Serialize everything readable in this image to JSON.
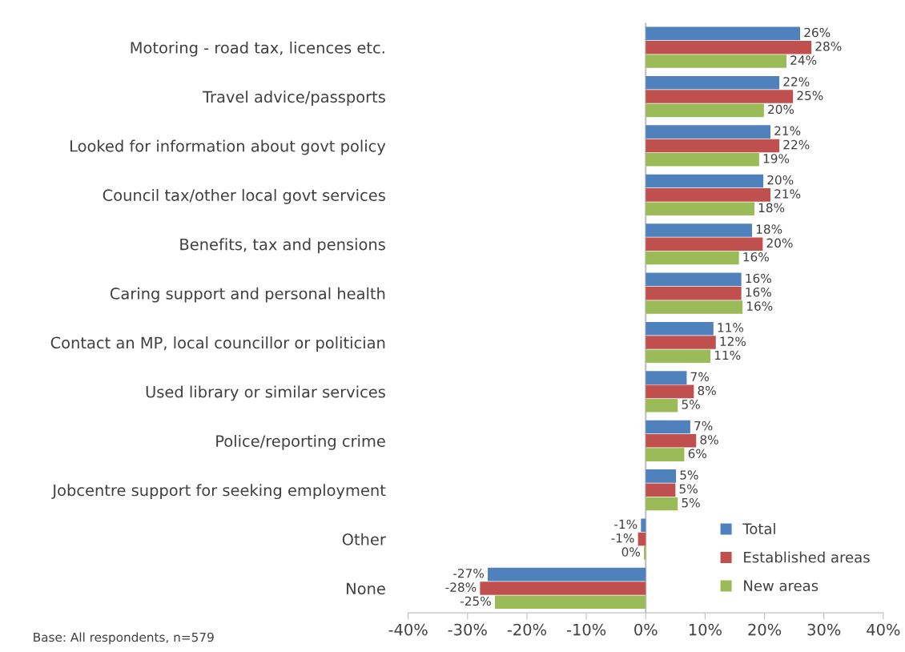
{
  "chart_data": {
    "type": "bar",
    "orientation": "horizontal",
    "categories": [
      "Motoring - road tax, licences etc.",
      "Travel advice/passports",
      "Looked for information about govt policy",
      "Council tax/other local govt services",
      "Benefits, tax and pensions",
      "Caring support and personal health",
      "Contact an MP, local councillor or politician",
      "Used library or similar services",
      "Police/reporting crime",
      "Jobcentre support for seeking employment",
      "Other",
      "None"
    ],
    "series": [
      {
        "name": "Total",
        "color": "#4f81bd",
        "values": [
          26,
          22.5,
          21,
          19.8,
          17.9,
          16.1,
          11.4,
          6.9,
          7.5,
          5.1,
          -0.8,
          -26.6
        ],
        "value_labels": [
          "26%",
          "22%",
          "21%",
          "20%",
          "18%",
          "16%",
          "11%",
          "7%",
          "7%",
          "5%",
          "-1%",
          "-27%"
        ]
      },
      {
        "name": "Established areas",
        "color": "#c0504d",
        "values": [
          27.9,
          24.8,
          22.5,
          21,
          19.7,
          16.1,
          11.8,
          8.1,
          8.5,
          5.0,
          -1.3,
          -27.9
        ],
        "value_labels": [
          "28%",
          "25%",
          "22%",
          "21%",
          "20%",
          "16%",
          "12%",
          "8%",
          "8%",
          "5%",
          "-1%",
          "-28%"
        ]
      },
      {
        "name": "New areas",
        "color": "#9bbb59",
        "values": [
          23.7,
          19.9,
          19.1,
          18.3,
          15.7,
          16.3,
          10.9,
          5.4,
          6.5,
          5.4,
          -0.3,
          -25.4
        ],
        "value_labels": [
          "24%",
          "20%",
          "19%",
          "18%",
          "16%",
          "16%",
          "11%",
          "5%",
          "6%",
          "5%",
          "0%",
          "-25%"
        ]
      }
    ],
    "xlim": [
      -40,
      40
    ],
    "xticks": [
      {
        "value": -40,
        "label": "-40%"
      },
      {
        "value": -30,
        "label": "-30%"
      },
      {
        "value": -20,
        "label": "-20%"
      },
      {
        "value": -10,
        "label": "-10%"
      },
      {
        "value": 0,
        "label": "0%"
      },
      {
        "value": 10,
        "label": "10%"
      },
      {
        "value": 20,
        "label": "20%"
      },
      {
        "value": 30,
        "label": "30%"
      },
      {
        "value": 40,
        "label": "40%"
      }
    ],
    "grid": false,
    "ref_lines": [
      {
        "axis": "x",
        "value": 0,
        "color": "#bfbfbf"
      }
    ],
    "legend": "bottom right",
    "annotations": [
      "Base: All respondents, n=579"
    ]
  }
}
